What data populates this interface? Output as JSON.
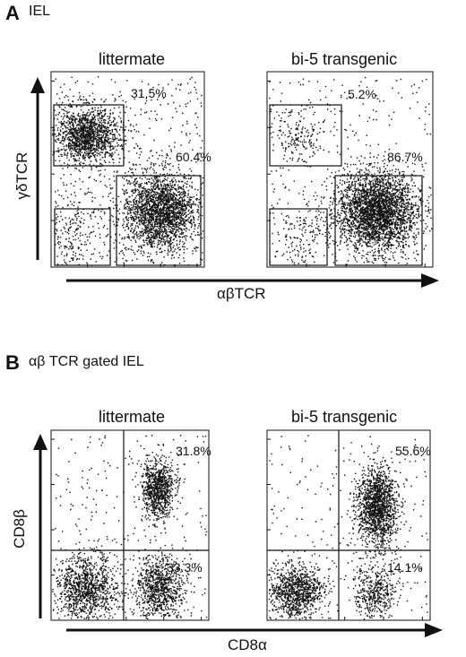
{
  "panels": [
    {
      "letter": "A",
      "title": "IEL",
      "xlabel": "αβTCR",
      "ylabel": "γδTCR",
      "plots": [
        {
          "title": "littermate",
          "gates": [
            {
              "label": "31.5%",
              "value": 31.5
            },
            {
              "label": "60.4%",
              "value": 60.4
            }
          ]
        },
        {
          "title": "bi-5 transgenic",
          "gates": [
            {
              "label": "5.2%",
              "value": 5.2
            },
            {
              "label": "86.7%",
              "value": 86.7
            }
          ]
        }
      ]
    },
    {
      "letter": "B",
      "title": "αβ TCR gated IEL",
      "xlabel": "CD8α",
      "ylabel": "CD8β",
      "plots": [
        {
          "title": "littermate",
          "quadrants": [
            {
              "label": "31.8%",
              "value": 31.8
            },
            {
              "label": "33.3%",
              "value": 33.3
            }
          ]
        },
        {
          "title": "bi-5 transgenic",
          "quadrants": [
            {
              "label": "55.6%",
              "value": 55.6
            },
            {
              "label": "14.1%",
              "value": 14.1
            }
          ]
        }
      ]
    }
  ],
  "chart_data": [
    {
      "type": "scatter",
      "title": "IEL",
      "xlabel": "αβTCR",
      "ylabel": "γδTCR",
      "series": [
        {
          "name": "littermate",
          "gates": [
            {
              "population": "upper-left gate",
              "percent": 31.5
            },
            {
              "population": "lower-right gate",
              "percent": 60.4
            }
          ]
        },
        {
          "name": "bi-5 transgenic",
          "gates": [
            {
              "population": "upper-left gate",
              "percent": 5.2
            },
            {
              "population": "lower-right gate",
              "percent": 86.7
            }
          ]
        }
      ]
    },
    {
      "type": "scatter",
      "title": "αβ TCR gated IEL",
      "xlabel": "CD8α",
      "ylabel": "CD8β",
      "series": [
        {
          "name": "littermate",
          "quadrants": [
            {
              "population": "upper-right",
              "percent": 31.8
            },
            {
              "population": "lower-right",
              "percent": 33.3
            }
          ]
        },
        {
          "name": "bi-5 transgenic",
          "quadrants": [
            {
              "population": "upper-right",
              "percent": 55.6
            },
            {
              "population": "lower-right",
              "percent": 14.1
            }
          ]
        }
      ]
    }
  ]
}
